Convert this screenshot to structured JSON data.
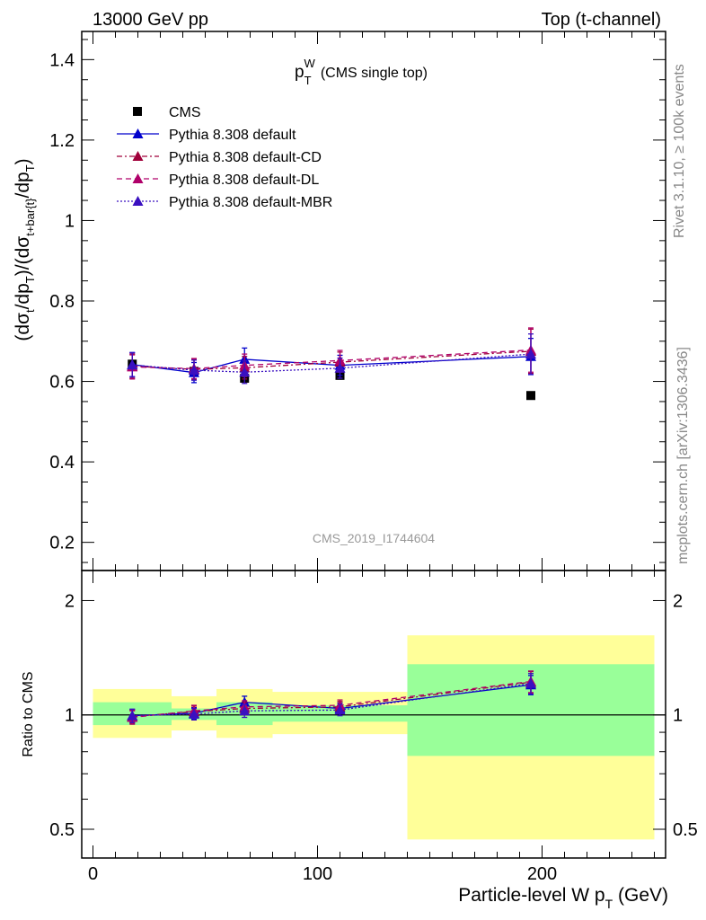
{
  "header": {
    "energy_label": "13000 GeV pp",
    "process_label": "Top (t-channel)"
  },
  "side_labels": {
    "rivet": "Rivet 3.1.10, ≥ 100k events",
    "mcplots": "mcplots.cern.ch [arXiv:1306.3436]"
  },
  "chart_data": [
    {
      "type": "scatter",
      "panel": "main",
      "title": "p_T^W (CMS single top)",
      "ylabel": "(dσ_t/dp_T)/(dσ_{t+bar{t}}/dp_T)",
      "xlim": [
        -5,
        255
      ],
      "ylim": [
        0.13,
        1.47
      ],
      "yticks": [
        0.2,
        0.4,
        0.6,
        0.8,
        1,
        1.2,
        1.4
      ],
      "watermark": "CMS_2019_I1744604",
      "legend_position": "top-left",
      "x": [
        17.5,
        45,
        67.5,
        110,
        195
      ],
      "series": [
        {
          "name": "CMS",
          "marker": "square",
          "color": "#000000",
          "values": [
            0.643,
            0.625,
            0.608,
            0.615,
            0.565
          ],
          "errors": [
            0.0,
            0.0,
            0.0,
            0.0,
            0.0
          ]
        },
        {
          "name": "Pythia 8.308 default",
          "marker": "triangle",
          "color": "#0000cc",
          "line": "solid",
          "values": [
            0.642,
            0.622,
            0.655,
            0.64,
            0.662
          ],
          "errors": [
            0.03,
            0.025,
            0.028,
            0.025,
            0.045
          ]
        },
        {
          "name": "Pythia 8.308 default-CD",
          "marker": "triangle",
          "color": "#a0003a",
          "line": "dashdot",
          "values": [
            0.638,
            0.63,
            0.634,
            0.648,
            0.675
          ],
          "errors": [
            0.03,
            0.025,
            0.028,
            0.025,
            0.055
          ]
        },
        {
          "name": "Pythia 8.308 default-DL",
          "marker": "triangle",
          "color": "#b0006a",
          "line": "dashed",
          "values": [
            0.636,
            0.632,
            0.64,
            0.652,
            0.678
          ],
          "errors": [
            0.03,
            0.025,
            0.028,
            0.025,
            0.055
          ]
        },
        {
          "name": "Pythia 8.308 default-MBR",
          "marker": "triangle",
          "color": "#3a10c0",
          "line": "dotted",
          "values": [
            0.641,
            0.628,
            0.623,
            0.633,
            0.668
          ],
          "errors": [
            0.03,
            0.025,
            0.028,
            0.025,
            0.05
          ]
        }
      ]
    },
    {
      "type": "scatter",
      "panel": "ratio",
      "ylabel": "Ratio to CMS",
      "xlabel": "Particle-level W p_T (GeV)",
      "yscale": "log",
      "ylim": [
        0.42,
        2.4
      ],
      "yticks": [
        0.5,
        1,
        2
      ],
      "xticks": [
        0,
        100,
        200
      ],
      "reference_line": 1,
      "x": [
        17.5,
        45,
        67.5,
        110,
        195
      ],
      "uncertainty_bands": [
        {
          "x_range": [
            0,
            35
          ],
          "inner": [
            0.94,
            1.08
          ],
          "outer": [
            0.87,
            1.17
          ]
        },
        {
          "x_range": [
            35,
            55
          ],
          "inner": [
            0.97,
            1.04
          ],
          "outer": [
            0.91,
            1.12
          ]
        },
        {
          "x_range": [
            55,
            80
          ],
          "inner": [
            0.94,
            1.08
          ],
          "outer": [
            0.87,
            1.17
          ]
        },
        {
          "x_range": [
            80,
            140
          ],
          "inner": [
            0.96,
            1.06
          ],
          "outer": [
            0.89,
            1.15
          ]
        },
        {
          "x_range": [
            140,
            250
          ],
          "inner": [
            0.78,
            1.36
          ],
          "outer": [
            0.47,
            1.62
          ]
        }
      ],
      "series": [
        {
          "name": "Pythia 8.308 default",
          "color": "#0000cc",
          "line": "solid",
          "values": [
            0.995,
            1.01,
            1.08,
            1.04,
            1.2
          ],
          "errors": [
            0.04,
            0.035,
            0.04,
            0.035,
            0.07
          ]
        },
        {
          "name": "Pythia 8.308 default-CD",
          "color": "#a0003a",
          "line": "dashdot",
          "values": [
            0.99,
            1.02,
            1.04,
            1.05,
            1.22
          ],
          "errors": [
            0.04,
            0.035,
            0.04,
            0.035,
            0.08
          ]
        },
        {
          "name": "Pythia 8.308 default-DL",
          "color": "#b0006a",
          "line": "dashed",
          "values": [
            0.985,
            1.025,
            1.05,
            1.06,
            1.225
          ],
          "errors": [
            0.04,
            0.035,
            0.04,
            0.035,
            0.08
          ]
        },
        {
          "name": "Pythia 8.308 default-MBR",
          "color": "#3a10c0",
          "line": "dotted",
          "values": [
            0.995,
            1.005,
            1.025,
            1.03,
            1.21
          ],
          "errors": [
            0.04,
            0.035,
            0.04,
            0.035,
            0.075
          ]
        }
      ]
    }
  ],
  "colors": {
    "band_outer": "#ffff99",
    "band_inner": "#99ff99",
    "axis": "#000000",
    "watermark": "#999999",
    "side_text": "#888888"
  }
}
